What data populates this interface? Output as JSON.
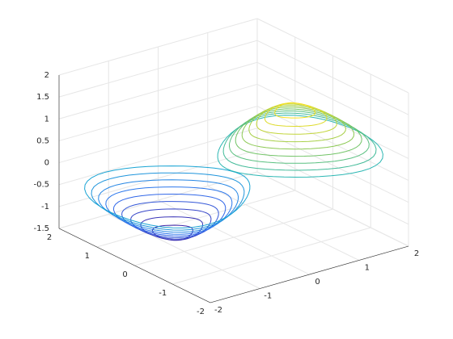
{
  "chart_data": {
    "type": "contour3",
    "xlim": [
      -2,
      2
    ],
    "xticks": [
      -2,
      -1,
      0,
      1,
      2
    ],
    "ylim": [
      -2,
      2
    ],
    "yticks": [
      -2,
      -1,
      0,
      1,
      2
    ],
    "zlim": [
      -1.5,
      2
    ],
    "zticks": [
      -1.5,
      -1,
      -0.5,
      0,
      0.5,
      1,
      1.5,
      2
    ],
    "grid": true,
    "levels": [
      -0.45,
      -0.4,
      -0.35,
      -0.3,
      -0.25,
      -0.2,
      -0.15,
      -0.1,
      -0.05,
      0.05,
      0.1,
      0.15,
      0.2,
      0.25,
      0.3,
      0.35,
      0.4,
      0.45
    ],
    "colormap": [
      "#3e26a8",
      "#2f6ff0",
      "#13b3cc",
      "#7ec65a",
      "#f9e11e"
    ]
  }
}
